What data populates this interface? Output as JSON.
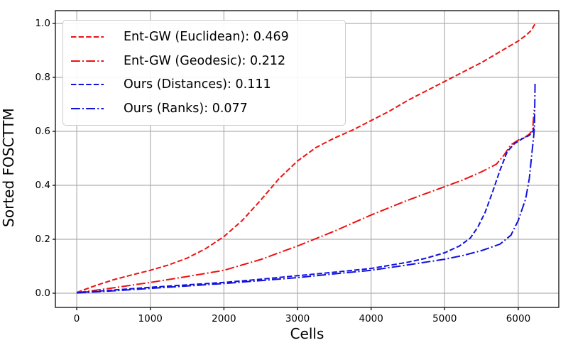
{
  "chart_data": {
    "type": "line",
    "title": "",
    "xlabel": "Cells",
    "ylabel": "Sorted FOSCTTM",
    "xlim": [
      -290,
      6550
    ],
    "ylim": [
      -0.0526,
      1.0474
    ],
    "xticks": [
      0,
      1000,
      2000,
      3000,
      4000,
      5000,
      6000
    ],
    "yticks": [
      0.0,
      0.2,
      0.4,
      0.6,
      0.8,
      1.0
    ],
    "ytick_labels": [
      "0.0",
      "0.2",
      "0.4",
      "0.6",
      "0.8",
      "1.0"
    ],
    "grid": true,
    "grid_color": "#b0b0b0",
    "spine_color": "#1a1a1a",
    "legend_position": "upper left",
    "series": [
      {
        "name": "Ent-GW (Euclidean): 0.469",
        "mean_foscttm": 0.469,
        "color": "#ee1111",
        "style": "dashed",
        "points": [
          [
            0,
            0.003
          ],
          [
            250,
            0.028
          ],
          [
            500,
            0.05
          ],
          [
            750,
            0.068
          ],
          [
            1000,
            0.085
          ],
          [
            1250,
            0.105
          ],
          [
            1500,
            0.13
          ],
          [
            1750,
            0.165
          ],
          [
            2000,
            0.21
          ],
          [
            2250,
            0.27
          ],
          [
            2500,
            0.345
          ],
          [
            2750,
            0.425
          ],
          [
            3000,
            0.49
          ],
          [
            3250,
            0.54
          ],
          [
            3500,
            0.575
          ],
          [
            3750,
            0.605
          ],
          [
            4000,
            0.64
          ],
          [
            4250,
            0.675
          ],
          [
            4500,
            0.715
          ],
          [
            4750,
            0.75
          ],
          [
            5000,
            0.785
          ],
          [
            5250,
            0.82
          ],
          [
            5500,
            0.855
          ],
          [
            5750,
            0.895
          ],
          [
            6000,
            0.935
          ],
          [
            6100,
            0.955
          ],
          [
            6180,
            0.975
          ],
          [
            6230,
            1.0
          ]
        ]
      },
      {
        "name": "Ent-GW (Geodesic): 0.212",
        "mean_foscttm": 0.212,
        "color": "#ee1111",
        "style": "dashdot",
        "points": [
          [
            0,
            0.002
          ],
          [
            500,
            0.02
          ],
          [
            1000,
            0.04
          ],
          [
            1500,
            0.062
          ],
          [
            2000,
            0.085
          ],
          [
            2500,
            0.125
          ],
          [
            3000,
            0.175
          ],
          [
            3500,
            0.23
          ],
          [
            4000,
            0.29
          ],
          [
            4500,
            0.345
          ],
          [
            5000,
            0.395
          ],
          [
            5250,
            0.42
          ],
          [
            5500,
            0.45
          ],
          [
            5700,
            0.478
          ],
          [
            5800,
            0.51
          ],
          [
            5900,
            0.55
          ],
          [
            6000,
            0.568
          ],
          [
            6100,
            0.58
          ],
          [
            6150,
            0.59
          ],
          [
            6195,
            0.605
          ],
          [
            6215,
            0.68
          ]
        ]
      },
      {
        "name": "Ours (Distances): 0.111",
        "mean_foscttm": 0.111,
        "color": "#1111dd",
        "style": "dashed",
        "points": [
          [
            0,
            0.002
          ],
          [
            500,
            0.012
          ],
          [
            1000,
            0.022
          ],
          [
            1500,
            0.031
          ],
          [
            2000,
            0.04
          ],
          [
            2500,
            0.052
          ],
          [
            3000,
            0.065
          ],
          [
            3500,
            0.078
          ],
          [
            4000,
            0.092
          ],
          [
            4500,
            0.115
          ],
          [
            4750,
            0.13
          ],
          [
            5000,
            0.15
          ],
          [
            5200,
            0.175
          ],
          [
            5350,
            0.205
          ],
          [
            5450,
            0.245
          ],
          [
            5550,
            0.3
          ],
          [
            5650,
            0.375
          ],
          [
            5750,
            0.455
          ],
          [
            5850,
            0.525
          ],
          [
            5950,
            0.555
          ],
          [
            6050,
            0.572
          ],
          [
            6150,
            0.585
          ],
          [
            6200,
            0.6
          ],
          [
            6210,
            0.615
          ]
        ]
      },
      {
        "name": "Ours (Ranks): 0.077",
        "mean_foscttm": 0.077,
        "color": "#1111dd",
        "style": "dashdot",
        "points": [
          [
            0,
            0.001
          ],
          [
            500,
            0.009
          ],
          [
            1000,
            0.018
          ],
          [
            1500,
            0.027
          ],
          [
            2000,
            0.036
          ],
          [
            2500,
            0.047
          ],
          [
            3000,
            0.058
          ],
          [
            3500,
            0.072
          ],
          [
            4000,
            0.085
          ],
          [
            4500,
            0.105
          ],
          [
            5000,
            0.126
          ],
          [
            5250,
            0.14
          ],
          [
            5500,
            0.158
          ],
          [
            5750,
            0.182
          ],
          [
            5900,
            0.215
          ],
          [
            6000,
            0.27
          ],
          [
            6100,
            0.35
          ],
          [
            6150,
            0.425
          ],
          [
            6185,
            0.52
          ],
          [
            6210,
            0.585
          ],
          [
            6220,
            0.62
          ],
          [
            6228,
            0.78
          ]
        ]
      }
    ]
  }
}
